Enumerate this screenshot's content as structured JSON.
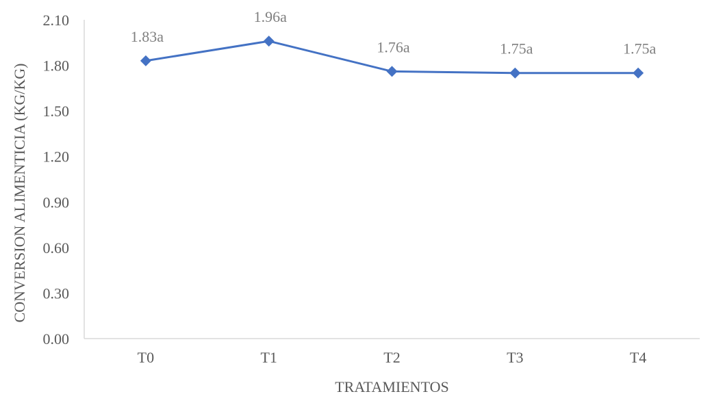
{
  "chart_data": {
    "type": "line",
    "categories": [
      "T0",
      "T1",
      "T2",
      "T3",
      "T4"
    ],
    "series": [
      {
        "values": [
          1.83,
          1.96,
          1.76,
          1.75,
          1.75
        ],
        "data_labels": [
          "1.83a",
          "1.96a",
          "1.76a",
          "1.75a",
          "1.75a"
        ],
        "color": "#4472c4",
        "marker": "diamond"
      }
    ],
    "xlabel": "TRATAMIENTOS",
    "ylabel": "CONVERSION ALIMENTICIA (KG/KG)",
    "ylim": [
      0,
      2.1
    ],
    "yticks": [
      "0.00",
      "0.30",
      "0.60",
      "0.90",
      "1.20",
      "1.50",
      "1.80",
      "2.10"
    ],
    "ytick_values": [
      0,
      0.3,
      0.6,
      0.9,
      1.2,
      1.5,
      1.8,
      2.1
    ],
    "grid": false,
    "legend": "none"
  }
}
